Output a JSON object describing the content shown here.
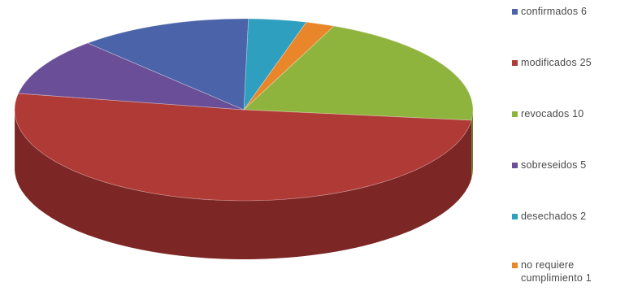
{
  "chart_data": {
    "type": "pie",
    "title": "",
    "three_d": true,
    "legend_position": "right",
    "categories": [
      "confirmados",
      "modificados",
      "revocados",
      "sobreseidos",
      "desechados",
      "no requiere cumplimiento"
    ],
    "legend_labels": [
      "confirmados 6",
      "modificados 25",
      "revocados 10",
      "sobreseidos 5",
      "desechados 2",
      "no requiere cumplimiento 1"
    ],
    "values": [
      6,
      25,
      10,
      5,
      2,
      1
    ],
    "colors": [
      "#4b63a8",
      "#b03a36",
      "#8fb43e",
      "#6a4e97",
      "#2f9fbf",
      "#e9862a"
    ],
    "depth_colors": [
      "#34467a",
      "#7c2725",
      "#63802a",
      "#4a366b",
      "#1f7089",
      "#a65f1d"
    ]
  }
}
